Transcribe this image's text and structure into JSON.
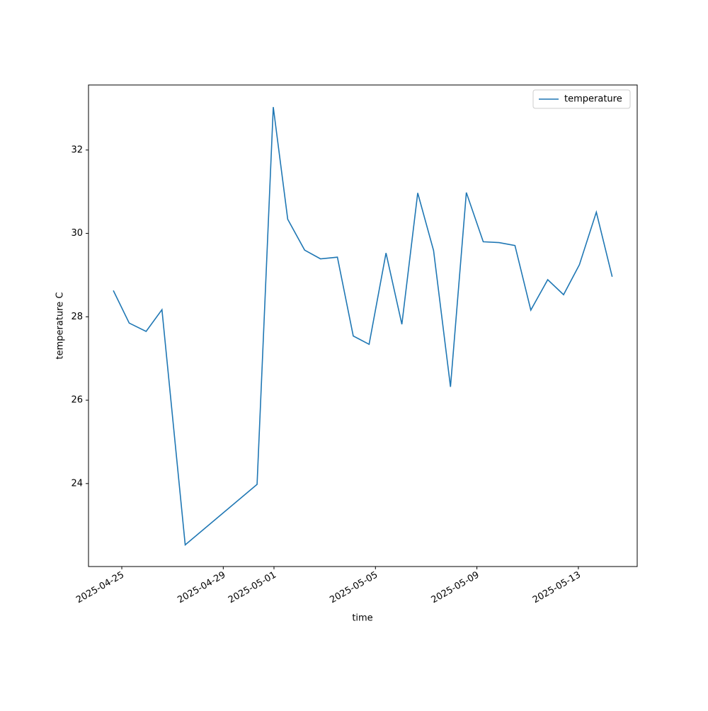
{
  "chart_data": {
    "type": "line",
    "x_label": "time",
    "y_label": "temperature C",
    "x": [
      "2025-04-24T16:00",
      "2025-04-25T07:00",
      "2025-04-25T23:00",
      "2025-04-26T14:00",
      "2025-04-27T12:00",
      "2025-04-30T08:00",
      "2025-04-30T23:20",
      "2025-05-01T13:00",
      "2025-05-02T05:00",
      "2025-05-02T20:00",
      "2025-05-03T12:00",
      "2025-05-04T03:00",
      "2025-05-04T18:00",
      "2025-05-05T10:00",
      "2025-05-06T01:00",
      "2025-05-06T16:00",
      "2025-05-07T07:00",
      "2025-05-07T23:00",
      "2025-05-08T14:00",
      "2025-05-09T06:00",
      "2025-05-09T21:00",
      "2025-05-10T12:00",
      "2025-05-11T03:00",
      "2025-05-11T19:00",
      "2025-05-12T10:00",
      "2025-05-13T01:00",
      "2025-05-13T17:00",
      "2025-05-14T08:00"
    ],
    "series": [
      {
        "name": "temperature",
        "color": "#1f77b4",
        "values": [
          28.63,
          27.85,
          27.65,
          28.17,
          22.53,
          23.98,
          33.03,
          30.34,
          29.6,
          29.39,
          29.43,
          27.54,
          27.34,
          29.53,
          27.82,
          30.97,
          29.59,
          26.32,
          30.98,
          29.8,
          29.78,
          29.71,
          28.16,
          28.89,
          28.53,
          29.25,
          30.51,
          28.96
        ]
      }
    ],
    "xlim": [
      "2025-04-23T16:30",
      "2025-05-15T07:40"
    ],
    "xticks": [
      "2025-04-25",
      "2025-04-29",
      "2025-05-01",
      "2025-05-05",
      "2025-05-09",
      "2025-05-13"
    ],
    "ylim": [
      22.01,
      33.56
    ],
    "yticks": [
      24,
      26,
      28,
      30,
      32
    ],
    "grid": false,
    "legend": "upper right"
  }
}
